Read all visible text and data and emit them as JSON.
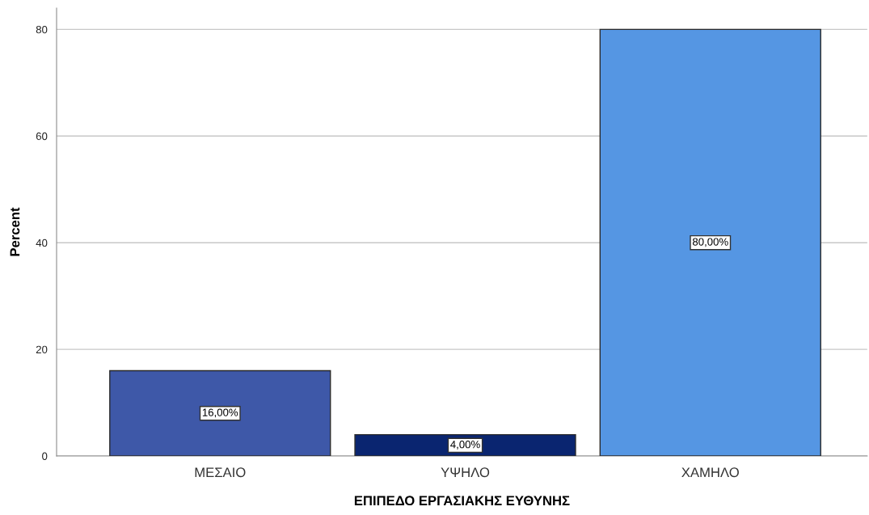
{
  "chart_data": {
    "type": "bar",
    "xlabel": "ΕΠΙΠΕΔΟ ΕΡΓΑΣΙΑΚΗΣ ΕΥΘΥΝΗΣ",
    "ylabel": "Percent",
    "categories": [
      "ΜΕΣΑΙΟ",
      "ΥΨΗΛΟ",
      "ΧΑΜΗΛΟ"
    ],
    "values": [
      16,
      4,
      80
    ],
    "colors": [
      "#3e58a8",
      "#0a2570",
      "#5596e3"
    ],
    "value_labels": [
      "16,00%",
      "4,00%",
      "80,00%"
    ],
    "ylim": [
      0,
      84
    ],
    "yticks": [
      0,
      20,
      40,
      60,
      80
    ],
    "grid": "y",
    "legend": false
  }
}
